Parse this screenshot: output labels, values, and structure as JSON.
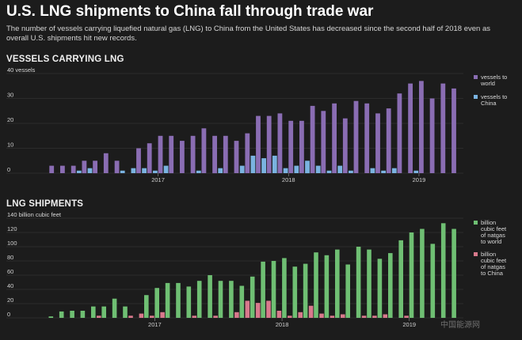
{
  "header": {
    "title": "U.S. LNG shipments to China fall through trade war",
    "subtitle": "The number of vessels carrying liquefied natural gas (LNG) to China from the United States has decreased since the second half of 2018 even as overall U.S. shipments hit new records."
  },
  "watermark": "中国能源网",
  "colors": {
    "background": "#1c1c1c",
    "world_vessels": "#8a6db3",
    "china_vessels": "#7ab3e0",
    "world_lng": "#6fbf73",
    "china_lng": "#d8798c",
    "grid": "#3b3b3b"
  },
  "chart_data": [
    {
      "type": "bar",
      "title": "VESSELS CARRYING LNG",
      "ylabel": "40 vessels",
      "ylim": [
        0,
        40
      ],
      "yticks": [
        0,
        10,
        20,
        30
      ],
      "year_labels": [
        "2017",
        "2018",
        "2019"
      ],
      "year_start_index": [
        12,
        24,
        36
      ],
      "grid": true,
      "legend_position": "right",
      "series": [
        {
          "name": "vessels to world",
          "color": "#8a6db3",
          "values": [
            0,
            0,
            3,
            3,
            3,
            5,
            5,
            8,
            5,
            0,
            10,
            12,
            15,
            15,
            13,
            15,
            18,
            15,
            15,
            13,
            16,
            23,
            23,
            24,
            21,
            21,
            27,
            25,
            28,
            22,
            29,
            28,
            24,
            26,
            32,
            36,
            37,
            30,
            36,
            34
          ]
        },
        {
          "name": "vessels to China",
          "color": "#7ab3e0",
          "values": [
            0,
            0,
            0,
            0,
            0,
            1,
            2,
            0,
            0,
            1,
            2,
            2,
            1,
            3,
            0,
            0,
            1,
            0,
            2,
            0,
            3,
            7,
            6,
            7,
            2,
            3,
            5,
            3,
            1,
            3,
            1,
            0,
            2,
            1,
            2,
            0,
            1,
            0,
            0,
            0
          ]
        }
      ]
    },
    {
      "type": "bar",
      "title": "LNG SHIPMENTS",
      "ylabel": "140 billion cubic feet",
      "ylim": [
        0,
        140
      ],
      "yticks": [
        0,
        20,
        40,
        60,
        80,
        100,
        120
      ],
      "year_labels": [
        "2017",
        "2018",
        "2019"
      ],
      "year_start_index": [
        12,
        24,
        36
      ],
      "grid": true,
      "legend_position": "right",
      "series": [
        {
          "name": "billion cubic feet of natgas to world",
          "color": "#6fbf73",
          "values": [
            0,
            0,
            2,
            9,
            10,
            10,
            16,
            16,
            27,
            16,
            0,
            32,
            42,
            49,
            49,
            44,
            52,
            60,
            52,
            52,
            45,
            58,
            79,
            80,
            84,
            72,
            76,
            92,
            88,
            96,
            75,
            100,
            96,
            83,
            91,
            109,
            120,
            125,
            104,
            133,
            125
          ]
        },
        {
          "name": "billion cubic feet of natgas to China",
          "color": "#d8798c",
          "values": [
            0,
            0,
            0,
            0,
            0,
            0,
            0,
            3,
            0,
            0,
            3,
            6,
            3,
            8,
            0,
            0,
            3,
            0,
            3,
            0,
            8,
            24,
            21,
            24,
            10,
            3,
            8,
            17,
            6,
            3,
            5,
            0,
            3,
            3,
            5,
            0,
            3,
            0,
            0,
            0,
            0
          ]
        }
      ]
    }
  ]
}
